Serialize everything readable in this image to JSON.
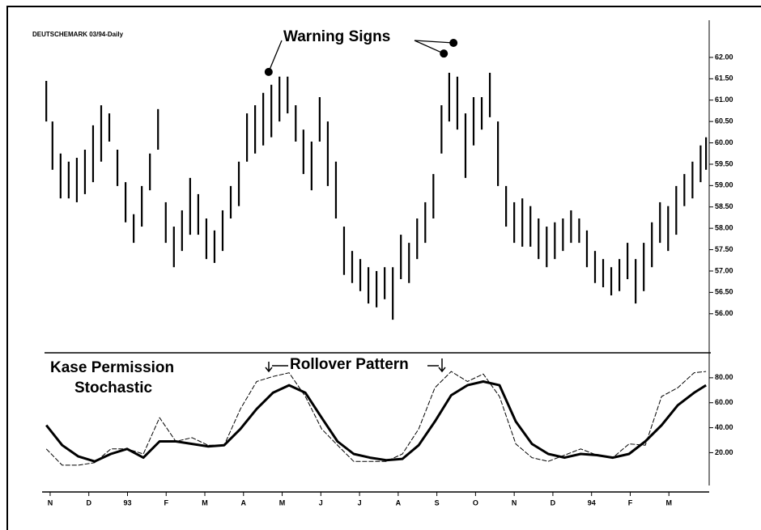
{
  "chart_data": [
    {
      "type": "ohlc",
      "title": "DEUTSCHEMARK 03/94-Daily",
      "color": "#000000",
      "annotation": {
        "text": "Warning Signs",
        "points": [
          [
            5.65,
            61.66
          ],
          [
            10.18,
            62.09
          ],
          [
            10.43,
            62.34
          ]
        ]
      },
      "x": [
        -0.1,
        0.06,
        0.27,
        0.48,
        0.69,
        0.9,
        1.11,
        1.32,
        1.53,
        1.74,
        1.95,
        2.16,
        2.37,
        2.58,
        2.79,
        2.99,
        3.2,
        3.41,
        3.62,
        3.83,
        4.04,
        4.25,
        4.46,
        4.67,
        4.88,
        5.09,
        5.3,
        5.51,
        5.72,
        5.93,
        6.14,
        6.35,
        6.55,
        6.76,
        6.97,
        7.18,
        7.39,
        7.6,
        7.81,
        8.02,
        8.23,
        8.44,
        8.65,
        8.86,
        9.07,
        9.28,
        9.49,
        9.7,
        9.91,
        10.12,
        10.32,
        10.53,
        10.74,
        10.95,
        11.16,
        11.37,
        11.58,
        11.79,
        12.0,
        12.21,
        12.42,
        12.63,
        12.84,
        13.05,
        13.26,
        13.47,
        13.68,
        13.88,
        14.09,
        14.3,
        14.51,
        14.72,
        14.93,
        15.14,
        15.35,
        15.56,
        15.77,
        15.98,
        16.19,
        16.4,
        16.61,
        16.82,
        16.96
      ],
      "high": [
        61.45,
        60.5,
        59.75,
        59.56,
        59.65,
        59.84,
        60.41,
        60.88,
        60.69,
        59.84,
        59.08,
        58.33,
        58.99,
        59.75,
        60.79,
        58.61,
        58.04,
        58.42,
        59.18,
        58.8,
        58.23,
        57.95,
        58.42,
        58.99,
        59.56,
        60.69,
        60.88,
        61.17,
        61.36,
        61.55,
        61.55,
        60.88,
        60.31,
        60.03,
        61.07,
        60.5,
        59.56,
        58.04,
        57.47,
        57.28,
        57.09,
        57.0,
        57.09,
        57.09,
        57.85,
        57.66,
        58.23,
        58.61,
        59.27,
        60.88,
        61.64,
        61.55,
        60.69,
        61.07,
        61.07,
        61.64,
        60.5,
        58.99,
        58.61,
        58.7,
        58.52,
        58.23,
        58.04,
        58.14,
        58.23,
        58.42,
        58.23,
        57.95,
        57.47,
        57.28,
        57.09,
        57.28,
        57.66,
        57.28,
        57.66,
        58.14,
        58.61,
        58.52,
        58.99,
        59.27,
        59.56,
        59.94,
        60.13
      ],
      "low": [
        60.5,
        59.37,
        58.7,
        58.7,
        58.61,
        58.8,
        59.08,
        59.56,
        60.03,
        58.99,
        58.14,
        57.66,
        58.04,
        58.89,
        59.84,
        57.66,
        57.09,
        57.47,
        57.85,
        57.85,
        57.28,
        57.19,
        57.47,
        58.23,
        58.52,
        59.56,
        59.75,
        59.94,
        60.13,
        60.5,
        60.69,
        60.03,
        59.27,
        58.89,
        60.03,
        58.99,
        58.23,
        56.91,
        56.72,
        56.53,
        56.24,
        56.15,
        56.34,
        55.86,
        56.81,
        56.72,
        57.28,
        57.66,
        58.23,
        59.75,
        60.5,
        60.31,
        59.18,
        59.94,
        60.31,
        60.6,
        58.99,
        58.04,
        57.66,
        57.57,
        57.57,
        57.28,
        57.09,
        57.28,
        57.47,
        57.66,
        57.66,
        57.09,
        56.72,
        56.62,
        56.43,
        56.53,
        56.81,
        56.24,
        56.53,
        57.09,
        57.66,
        57.47,
        57.85,
        58.52,
        58.7,
        59.08,
        59.37
      ],
      "xlim": [
        -0.25,
        17.0
      ],
      "ylim": [
        55.2,
        62.87
      ],
      "yticks": [
        {
          "value": 62,
          "label": "62.00"
        },
        {
          "value": 61.5,
          "label": "61.50"
        },
        {
          "value": 61,
          "label": "61.00"
        },
        {
          "value": 60.5,
          "label": "60.50"
        },
        {
          "value": 60,
          "label": "60.00"
        },
        {
          "value": 59.5,
          "label": "59.50"
        },
        {
          "value": 59,
          "label": "59.00"
        },
        {
          "value": 58.5,
          "label": "58.50"
        },
        {
          "value": 58,
          "label": "58.00"
        },
        {
          "value": 57.5,
          "label": "57.50"
        },
        {
          "value": 57,
          "label": "57.00"
        },
        {
          "value": 56.5,
          "label": "56.50"
        },
        {
          "value": 56,
          "label": "56.00"
        }
      ]
    },
    {
      "type": "line",
      "title_lines": [
        "Kase Permission",
        "Stochastic"
      ],
      "annotation": {
        "text": "Rollover Pattern"
      },
      "x": [
        -0.1,
        0.31,
        0.73,
        1.15,
        1.57,
        1.99,
        2.41,
        2.83,
        3.25,
        3.67,
        4.08,
        4.5,
        4.92,
        5.34,
        5.76,
        6.18,
        6.6,
        7.02,
        7.43,
        7.85,
        8.27,
        8.69,
        9.11,
        9.53,
        9.95,
        10.37,
        10.79,
        11.2,
        11.62,
        12.04,
        12.46,
        12.88,
        13.3,
        13.72,
        14.14,
        14.55,
        14.97,
        15.39,
        15.81,
        16.23,
        16.65,
        16.96
      ],
      "series": [
        {
          "color": "#000000",
          "width": 1,
          "dash": true,
          "values": [
            23,
            10,
            10,
            12,
            23,
            23,
            19,
            48,
            29,
            32,
            26,
            26,
            55,
            77,
            81,
            84,
            65,
            39,
            26,
            13,
            13,
            13,
            19,
            39,
            72,
            85,
            77,
            83,
            65,
            27,
            16,
            13,
            18,
            23,
            18,
            16,
            27,
            26,
            65,
            72,
            84,
            85
          ]
        },
        {
          "color": "#000000",
          "width": 3,
          "dash": false,
          "values": [
            42,
            26,
            17,
            13,
            19,
            23,
            16,
            29,
            29,
            27,
            25,
            26,
            39,
            55,
            68,
            74,
            68,
            48,
            29,
            19,
            16,
            14,
            15,
            26,
            45,
            66,
            74,
            77,
            74,
            45,
            27,
            19,
            16,
            19,
            18,
            16,
            19,
            29,
            42,
            58,
            68,
            74
          ]
        }
      ],
      "xlim": [
        -0.25,
        17.0
      ],
      "ylim": [
        -5,
        100
      ],
      "yticks": [
        {
          "value": 80,
          "label": "80.00"
        },
        {
          "value": 60,
          "label": "60.00"
        },
        {
          "value": 40,
          "label": "40.00"
        },
        {
          "value": 20,
          "label": "20.00"
        }
      ],
      "xticks": [
        {
          "value": 0,
          "label": "N"
        },
        {
          "value": 1,
          "label": "D"
        },
        {
          "value": 2,
          "label": "93"
        },
        {
          "value": 3,
          "label": "F"
        },
        {
          "value": 4,
          "label": "M"
        },
        {
          "value": 5,
          "label": "A"
        },
        {
          "value": 6,
          "label": "M"
        },
        {
          "value": 7,
          "label": "J"
        },
        {
          "value": 8,
          "label": "J"
        },
        {
          "value": 9,
          "label": "A"
        },
        {
          "value": 10,
          "label": "S"
        },
        {
          "value": 11,
          "label": "O"
        },
        {
          "value": 12,
          "label": "N"
        },
        {
          "value": 13,
          "label": "D"
        },
        {
          "value": 14,
          "label": "94"
        },
        {
          "value": 15,
          "label": "F"
        },
        {
          "value": 16,
          "label": "M"
        }
      ]
    }
  ]
}
